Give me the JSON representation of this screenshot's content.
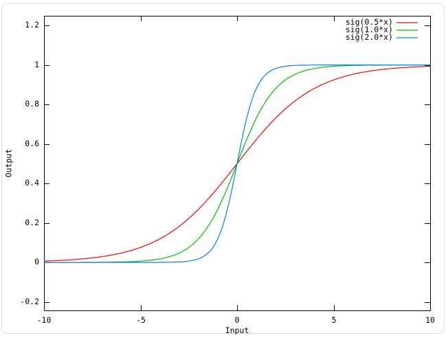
{
  "chart_data": {
    "type": "line",
    "title": "",
    "xlabel": "Input",
    "ylabel": "Output",
    "xlim": [
      -10,
      10
    ],
    "ylim": [
      -0.243,
      1.249
    ],
    "grid": false,
    "legend_position": "top-right-inside",
    "x_ticks": [
      {
        "value": -10,
        "label": "-10"
      },
      {
        "value": -5,
        "label": "-5"
      },
      {
        "value": 0,
        "label": "0"
      },
      {
        "value": 5,
        "label": "5"
      },
      {
        "value": 10,
        "label": "10"
      }
    ],
    "y_ticks": [
      {
        "value": -0.2,
        "label": "-0.2"
      },
      {
        "value": 0,
        "label": "0"
      },
      {
        "value": 0.2,
        "label": "0.2"
      },
      {
        "value": 0.4,
        "label": "0.4"
      },
      {
        "value": 0.6,
        "label": "0.6"
      },
      {
        "value": 0.8,
        "label": "0.8"
      },
      {
        "value": 1,
        "label": "1"
      },
      {
        "value": 1.2,
        "label": "1.2"
      }
    ],
    "series": [
      {
        "name": "sig(0.5*x)",
        "color": "#ff0000",
        "function": "sigmoid",
        "gain": 0.5,
        "points": [
          [
            -10,
            0.0067
          ],
          [
            -9,
            0.011
          ],
          [
            -8,
            0.018
          ],
          [
            -7,
            0.0293
          ],
          [
            -6,
            0.0474
          ],
          [
            -5,
            0.0759
          ],
          [
            -4,
            0.1192
          ],
          [
            -3,
            0.1824
          ],
          [
            -2,
            0.2689
          ],
          [
            -1,
            0.3775
          ],
          [
            0,
            0.5
          ],
          [
            1,
            0.6225
          ],
          [
            2,
            0.7311
          ],
          [
            3,
            0.8176
          ],
          [
            4,
            0.8808
          ],
          [
            5,
            0.9241
          ],
          [
            6,
            0.9526
          ],
          [
            7,
            0.9707
          ],
          [
            8,
            0.982
          ],
          [
            9,
            0.989
          ],
          [
            10,
            0.9933
          ]
        ]
      },
      {
        "name": "sig(1.0*x)",
        "color": "#00c000",
        "function": "sigmoid",
        "gain": 1.0,
        "points": [
          [
            -10,
            0
          ],
          [
            -9,
            0.0001
          ],
          [
            -8,
            0.0003
          ],
          [
            -7,
            0.0009
          ],
          [
            -6,
            0.0025
          ],
          [
            -5,
            0.0067
          ],
          [
            -4,
            0.018
          ],
          [
            -3,
            0.0474
          ],
          [
            -2,
            0.1192
          ],
          [
            -1,
            0.2689
          ],
          [
            0,
            0.5
          ],
          [
            1,
            0.7311
          ],
          [
            2,
            0.8808
          ],
          [
            3,
            0.9526
          ],
          [
            4,
            0.982
          ],
          [
            5,
            0.9933
          ],
          [
            6,
            0.9975
          ],
          [
            7,
            0.9991
          ],
          [
            8,
            0.9997
          ],
          [
            9,
            0.9999
          ],
          [
            10,
            1
          ]
        ]
      },
      {
        "name": "sig(2.0*x)",
        "color": "#0080ff",
        "function": "sigmoid",
        "gain": 2.0,
        "points": [
          [
            -10,
            0
          ],
          [
            -9,
            0
          ],
          [
            -8,
            0
          ],
          [
            -7,
            0
          ],
          [
            -6,
            0
          ],
          [
            -5,
            0
          ],
          [
            -4,
            0.0003
          ],
          [
            -3,
            0.0025
          ],
          [
            -2,
            0.018
          ],
          [
            -1,
            0.1192
          ],
          [
            0,
            0.5
          ],
          [
            1,
            0.8808
          ],
          [
            2,
            0.982
          ],
          [
            3,
            0.9975
          ],
          [
            4,
            0.9997
          ],
          [
            5,
            1
          ],
          [
            6,
            1
          ],
          [
            7,
            1
          ],
          [
            8,
            1
          ],
          [
            9,
            1
          ],
          [
            10,
            1
          ]
        ]
      }
    ],
    "colors": {
      "axis": "#000000",
      "background": "#ffffff",
      "frame_border": "#dfdfdf"
    }
  }
}
